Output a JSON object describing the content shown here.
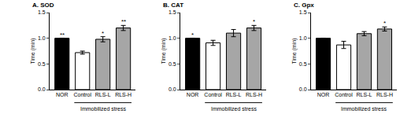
{
  "chart_data": [
    {
      "type": "bar",
      "title": "A. SOD",
      "y_label": "Time (min)",
      "categories": [
        "NOR",
        "Control",
        "RLS-L",
        "RLS-H"
      ],
      "values": [
        1.0,
        0.72,
        0.98,
        1.2
      ],
      "errors": [
        0,
        0.03,
        0.05,
        0.05
      ],
      "significance": [
        "**",
        null,
        "*",
        "**"
      ],
      "colors": [
        "#000000",
        "#ffffff",
        "#a6a6a6",
        "#a6a6a6"
      ],
      "annotations": [
        {
          "text": "Immobilized stress",
          "from": "Control",
          "to": "RLS-H"
        }
      ],
      "ylim": [
        0,
        1.5
      ],
      "yticks": [
        {
          "value": 0,
          "label": "0.0"
        },
        {
          "value": 0.5,
          "label": "0.5"
        },
        {
          "value": 1.0,
          "label": "1.0"
        },
        {
          "value": 1.5,
          "label": "1.5"
        }
      ],
      "grid": false
    },
    {
      "type": "bar",
      "title": "B. CAT",
      "y_label": "Time (min)",
      "categories": [
        "NOR",
        "Control",
        "RLS-L",
        "RLS-H"
      ],
      "values": [
        1.0,
        0.91,
        1.1,
        1.2
      ],
      "errors": [
        0,
        0.05,
        0.07,
        0.05
      ],
      "significance": [
        "*",
        null,
        null,
        "*"
      ],
      "colors": [
        "#000000",
        "#ffffff",
        "#a6a6a6",
        "#a6a6a6"
      ],
      "annotations": [
        {
          "text": "Immobilized stress",
          "from": "Control",
          "to": "RLS-H"
        }
      ],
      "ylim": [
        0,
        1.5
      ],
      "yticks": [
        {
          "value": 0,
          "label": "0.0"
        },
        {
          "value": 0.5,
          "label": "0.5"
        },
        {
          "value": 1.0,
          "label": "1.0"
        },
        {
          "value": 1.5,
          "label": "1.5"
        }
      ],
      "grid": false
    },
    {
      "type": "bar",
      "title": "C. Gpx",
      "y_label": "Time (min)",
      "categories": [
        "NOR",
        "Control",
        "RLS-L",
        "RLS-H"
      ],
      "values": [
        1.0,
        0.87,
        1.09,
        1.18
      ],
      "errors": [
        0,
        0.07,
        0.04,
        0.04
      ],
      "significance": [
        null,
        null,
        null,
        "*"
      ],
      "colors": [
        "#000000",
        "#ffffff",
        "#a6a6a6",
        "#a6a6a6"
      ],
      "annotations": [
        {
          "text": "Immobilized stress",
          "from": "Control",
          "to": "RLS-H"
        }
      ],
      "ylim": [
        0,
        1.5
      ],
      "yticks": [
        {
          "value": 0,
          "label": "0.0"
        },
        {
          "value": 0.5,
          "label": "0.5"
        },
        {
          "value": 1.0,
          "label": "1.0"
        },
        {
          "value": 1.5,
          "label": "1.5"
        }
      ],
      "grid": false
    }
  ]
}
